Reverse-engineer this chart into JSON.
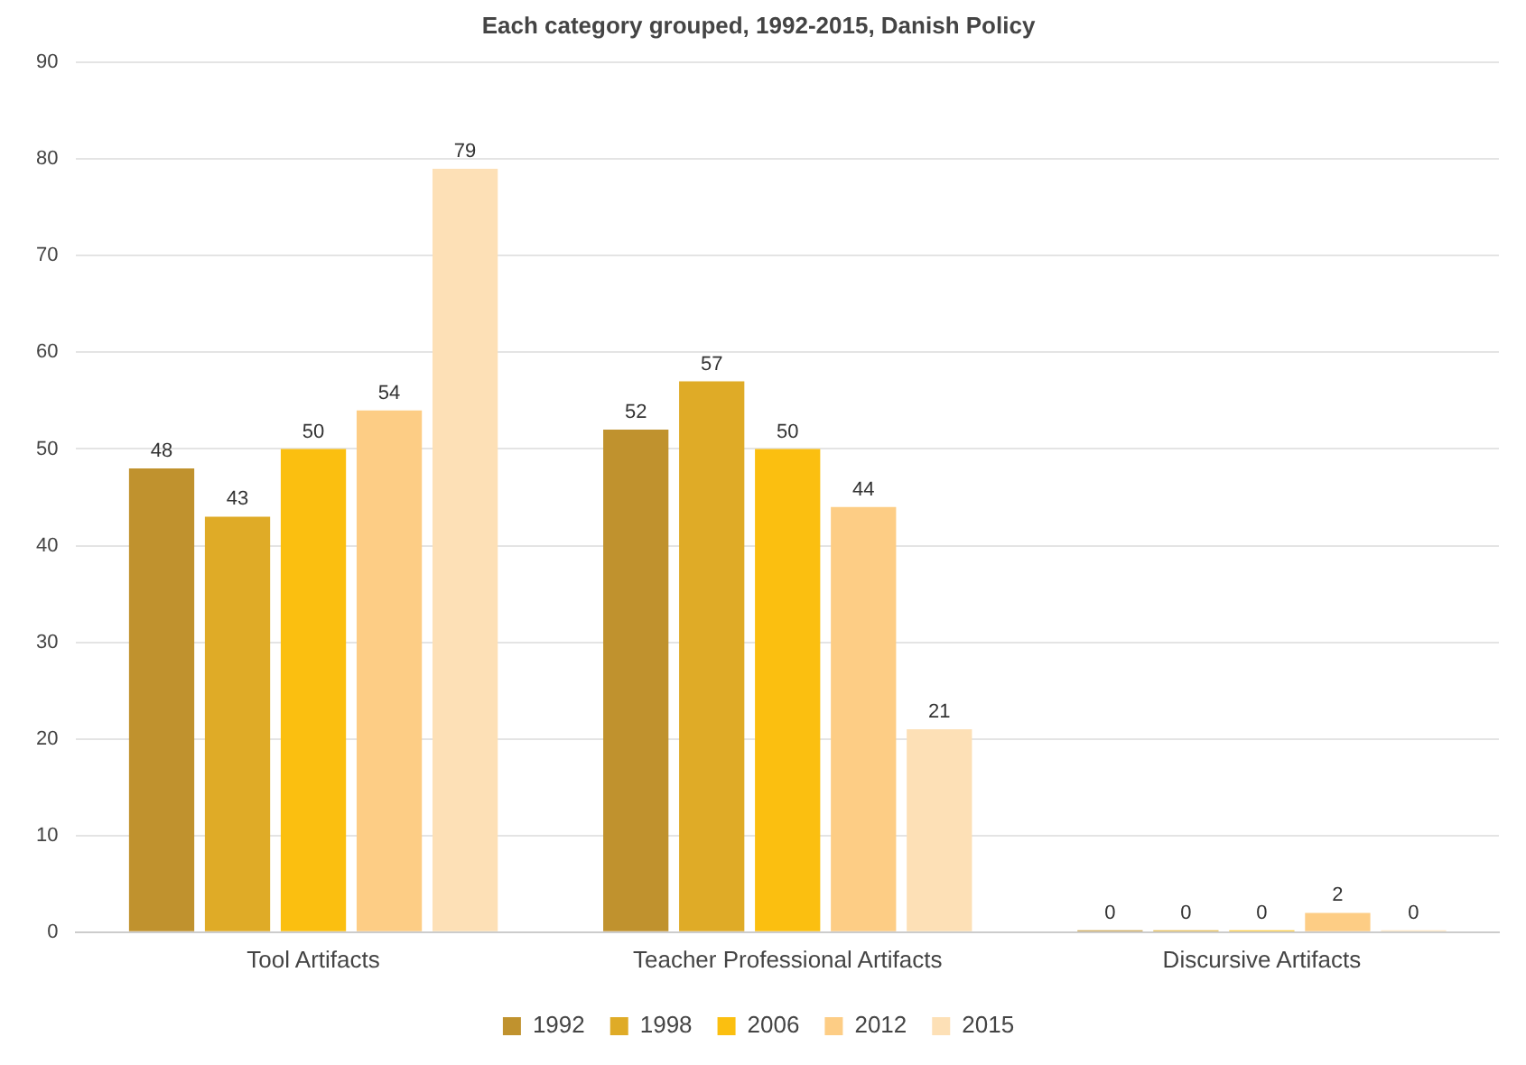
{
  "chart_data": {
    "type": "bar",
    "title": "Each category grouped, 1992-2015, Danish Policy",
    "categories": [
      "Tool Artifacts",
      "Teacher Professional Artifacts",
      "Discursive Artifacts"
    ],
    "series": [
      {
        "name": "1992",
        "color": "#c0922e",
        "values": [
          48,
          52,
          0
        ]
      },
      {
        "name": "1998",
        "color": "#dfab27",
        "values": [
          43,
          57,
          0
        ]
      },
      {
        "name": "2006",
        "color": "#fbbf10",
        "values": [
          50,
          50,
          0
        ]
      },
      {
        "name": "2012",
        "color": "#fdcd85",
        "values": [
          54,
          44,
          2
        ]
      },
      {
        "name": "2015",
        "color": "#fde0b6",
        "values": [
          79,
          21,
          0
        ]
      }
    ],
    "ylim": [
      0,
      90
    ],
    "yticks": [
      0,
      10,
      20,
      30,
      40,
      50,
      60,
      70,
      80,
      90
    ],
    "grid": "y",
    "legend": "bottom",
    "data_labels": true
  }
}
